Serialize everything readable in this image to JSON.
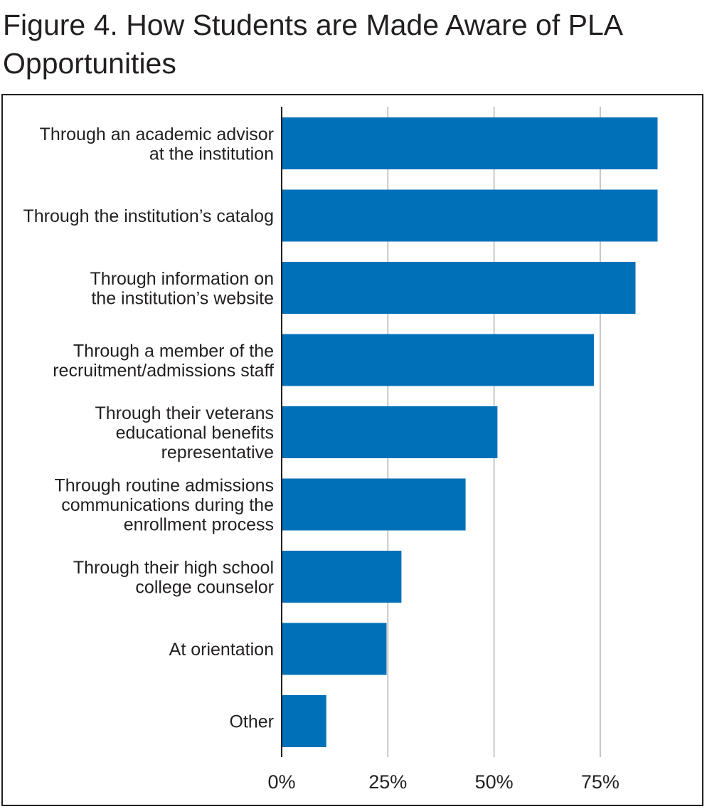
{
  "chart_data": {
    "type": "bar",
    "orientation": "horizontal",
    "title": "Figure 4. How Students are Made Aware of PLA Opportunities",
    "categories": [
      [
        "Through an academic advisor",
        "at the institution"
      ],
      [
        "Through the institution’s catalog"
      ],
      [
        "Through information on",
        "the institution’s website"
      ],
      [
        "Through a member of the",
        "recruitment/admissions staff"
      ],
      [
        "Through their veterans",
        "educational benefits",
        "representative"
      ],
      [
        "Through routine admissions",
        "communications during the",
        "enrollment process"
      ],
      [
        "Through their high school",
        "college counselor"
      ],
      [
        "At orientation"
      ],
      [
        "Other"
      ]
    ],
    "values": [
      88.5,
      88.5,
      83.3,
      73.5,
      50.8,
      43.3,
      28.2,
      24.7,
      10.5
    ],
    "xlim": [
      0,
      100
    ],
    "xticks": [
      0,
      25,
      50,
      75
    ],
    "xtick_labels": [
      "0%",
      "25%",
      "50%",
      "75%"
    ],
    "grid": true,
    "bar_color": "#0070b8",
    "grid_color": "#9a9a9a",
    "axis_color": "#231f20"
  }
}
